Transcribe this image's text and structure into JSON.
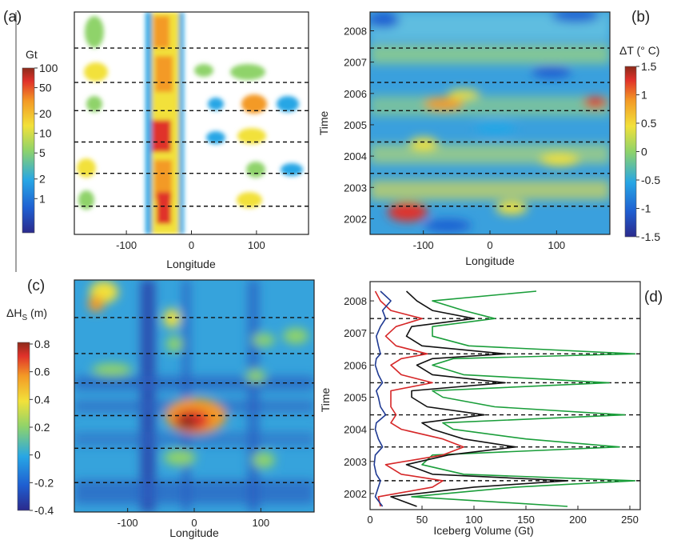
{
  "panel_a": {
    "letter": "(a)",
    "colorbar_title": "Gt",
    "colorbar_ticks": [
      "100",
      "50",
      "20",
      "10",
      "5",
      "2",
      "1"
    ],
    "xticks": [
      "-100",
      "0",
      "100"
    ],
    "xlabel": "Longitude"
  },
  "panel_b": {
    "letter": "(b)",
    "colorbar_title": "ΔT (° C)",
    "colorbar_ticks": [
      "1.5",
      "1",
      "0.5",
      "0",
      "-0.5",
      "-1",
      "-1.5"
    ],
    "xticks": [
      "-100",
      "0",
      "100"
    ],
    "xlabel": "Longitude",
    "ylabel": "Time",
    "yticks": [
      "2008",
      "2007",
      "2006",
      "2005",
      "2004",
      "2003",
      "2002"
    ]
  },
  "panel_c": {
    "letter": "(c)",
    "colorbar_title_main": "ΔH",
    "colorbar_title_sub": "S",
    "colorbar_title_unit": " (m)",
    "colorbar_ticks": [
      "0.8",
      "0.6",
      "0.4",
      "0.2",
      "0",
      "-0.2",
      "-0.4"
    ],
    "xticks": [
      "-100",
      "0",
      "100"
    ],
    "xlabel": "Longitude"
  },
  "panel_d": {
    "letter": "(d)",
    "xticks": [
      "0",
      "50",
      "100",
      "150",
      "200",
      "250"
    ],
    "xlabel": "Iceberg Volume (Gt)",
    "ylabel": "Time",
    "yticks": [
      "2008",
      "2007",
      "2006",
      "2005",
      "2004",
      "2003",
      "2002"
    ]
  },
  "colors": {
    "blue": "#1f3a93",
    "red": "#d62728",
    "green": "#1a9e3a",
    "black": "#111111"
  },
  "chart_data": [
    {
      "type": "heatmap",
      "panel": "a",
      "xlabel": "Longitude",
      "colorbar_label": "Gt",
      "colorbar_scale": "log",
      "colorbar_range": [
        0.3,
        100
      ],
      "xlim": [
        -180,
        180
      ],
      "ylim": [
        2001.5,
        2008.6
      ],
      "dashed_lines_year": [
        2002.4,
        2003.45,
        2004.45,
        2005.45,
        2006.35,
        2007.45
      ]
    },
    {
      "type": "heatmap",
      "panel": "b",
      "xlabel": "Longitude",
      "ylabel": "Time",
      "colorbar_label": "ΔT (° C)",
      "colorbar_range": [
        -1.5,
        1.5
      ],
      "xlim": [
        -180,
        180
      ],
      "ylim": [
        2001.5,
        2008.6
      ],
      "dashed_lines_year": [
        2002.4,
        2003.45,
        2004.45,
        2005.45,
        2006.35,
        2007.45
      ]
    },
    {
      "type": "heatmap",
      "panel": "c",
      "xlabel": "Longitude",
      "colorbar_label": "ΔHS (m)",
      "colorbar_range": [
        -0.4,
        0.8
      ],
      "xlim": [
        -180,
        180
      ],
      "ylim": [
        2001.5,
        2008.6
      ],
      "dashed_lines_year": [
        2002.4,
        2003.45,
        2004.45,
        2005.45,
        2006.35,
        2007.45
      ]
    },
    {
      "type": "line",
      "panel": "d",
      "xlabel": "Iceberg Volume (Gt)",
      "ylabel": "Time",
      "xlim": [
        0,
        260
      ],
      "ylim": [
        2001.5,
        2008.6
      ],
      "dashed_lines_year": [
        2002.4,
        2003.45,
        2004.45,
        2005.45,
        2006.35,
        2007.45
      ],
      "time": [
        2001.6,
        2001.9,
        2002.2,
        2002.4,
        2002.6,
        2002.9,
        2003.2,
        2003.45,
        2003.7,
        2004.0,
        2004.2,
        2004.45,
        2004.7,
        2005.0,
        2005.2,
        2005.45,
        2005.7,
        2006.0,
        2006.2,
        2006.35,
        2006.6,
        2006.9,
        2007.2,
        2007.45,
        2007.7,
        2008.0,
        2008.3
      ],
      "series": [
        {
          "name": "blue",
          "values": [
            12,
            5,
            8,
            10,
            6,
            4,
            5,
            12,
            8,
            5,
            6,
            15,
            10,
            8,
            6,
            12,
            8,
            5,
            6,
            10,
            8,
            6,
            10,
            15,
            12,
            20,
            10
          ]
        },
        {
          "name": "red",
          "values": [
            10,
            8,
            60,
            70,
            30,
            15,
            70,
            90,
            70,
            30,
            20,
            25,
            20,
            20,
            20,
            60,
            30,
            20,
            30,
            55,
            25,
            15,
            25,
            50,
            20,
            10,
            5
          ]
        },
        {
          "name": "black",
          "values": [
            45,
            20,
            100,
            190,
            60,
            35,
            75,
            140,
            90,
            60,
            50,
            110,
            55,
            40,
            40,
            130,
            60,
            45,
            60,
            130,
            50,
            35,
            40,
            100,
            60,
            45,
            35
          ]
        },
        {
          "name": "green",
          "values": [
            190,
            40,
            140,
            255,
            90,
            50,
            60,
            240,
            150,
            80,
            70,
            245,
            120,
            70,
            60,
            230,
            90,
            60,
            80,
            255,
            95,
            60,
            60,
            120,
            90,
            60,
            160
          ]
        }
      ]
    }
  ]
}
